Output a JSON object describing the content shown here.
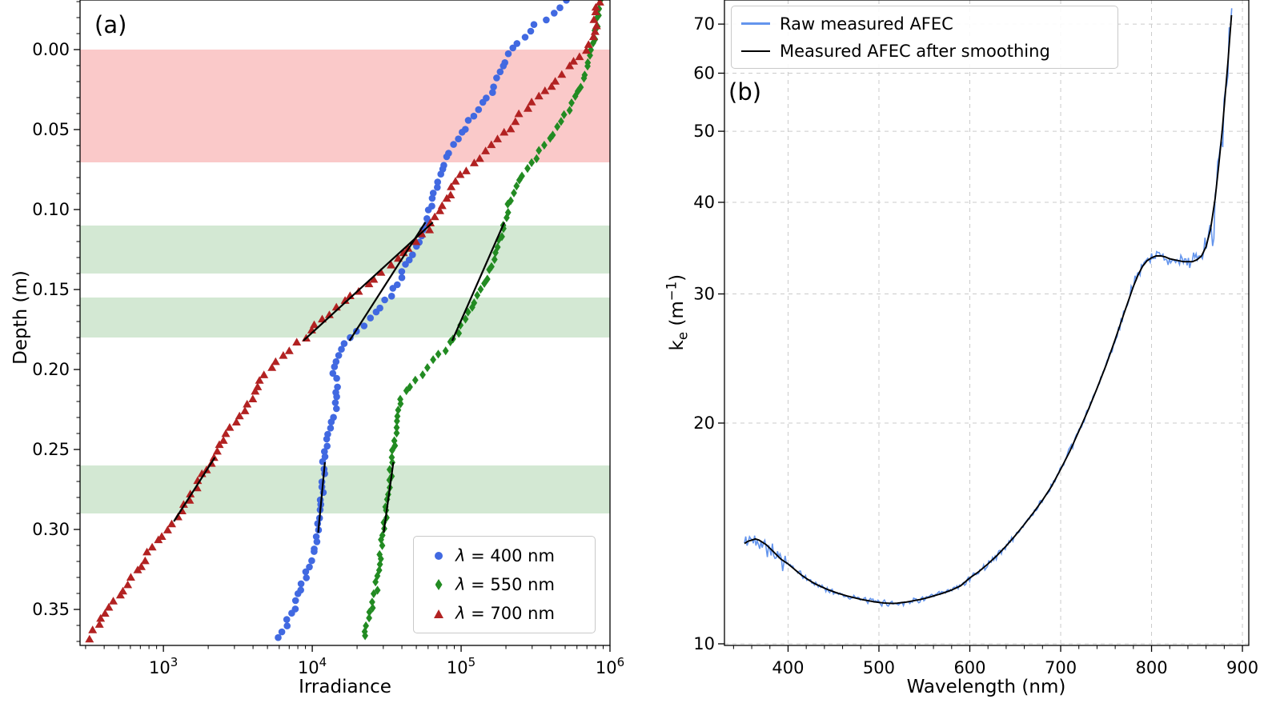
{
  "figure": {
    "background": "#ffffff",
    "panels": {
      "a": {
        "tag": "(a)",
        "xlabel": "Irradiance",
        "ylabel": "Depth (m)"
      },
      "b": {
        "tag": "(b)",
        "xlabel": "Wavelength (nm)",
        "ylabel_pre": "k",
        "ylabel_sub": "e",
        "ylabel_mid": " (m",
        "ylabel_sup": "−1",
        "ylabel_post": ")"
      }
    }
  },
  "chart_data": [
    {
      "id": "a",
      "type": "scatter",
      "xlabel": "Irradiance",
      "ylabel": "Depth (m)",
      "xscale": "log",
      "xlim_log": [
        2.44,
        6.0
      ],
      "ylim": [
        -0.031,
        0.3725
      ],
      "y_inverted": true,
      "grid": false,
      "legend_position": "lower right",
      "xticks_log": [
        3,
        4,
        5,
        6
      ],
      "xtick_labels": [
        {
          "base": "10",
          "exp": "3"
        },
        {
          "base": "10",
          "exp": "4"
        },
        {
          "base": "10",
          "exp": "5"
        },
        {
          "base": "10",
          "exp": "6"
        }
      ],
      "yticks": [
        0.0,
        0.05,
        0.1,
        0.15,
        0.2,
        0.25,
        0.3,
        0.35
      ],
      "ytick_labels": [
        "0.00",
        "0.05",
        "0.10",
        "0.15",
        "0.20",
        "0.25",
        "0.30",
        "0.35"
      ],
      "bands": [
        {
          "y1": 0.0,
          "y2": 0.0705,
          "color": "rgba(240,100,100,0.35)",
          "meaning": "surface-band"
        },
        {
          "y1": 0.11,
          "y2": 0.14,
          "color": "rgba(110,180,110,0.30)",
          "meaning": "fit-band"
        },
        {
          "y1": 0.155,
          "y2": 0.18,
          "color": "rgba(110,180,110,0.30)",
          "meaning": "fit-band"
        },
        {
          "y1": 0.26,
          "y2": 0.29,
          "color": "rgba(110,180,110,0.30)",
          "meaning": "fit-band"
        }
      ],
      "fit_color": "#000000",
      "fit_lines": [
        {
          "series": "700 nm",
          "d1": 0.108,
          "log1": 4.81,
          "d2": 0.182,
          "log2": 3.94
        },
        {
          "series": "400 nm",
          "d1": 0.108,
          "log1": 4.76,
          "d2": 0.182,
          "log2": 4.25
        },
        {
          "series": "550 nm",
          "d1": 0.108,
          "log1": 5.29,
          "d2": 0.182,
          "log2": 4.94
        },
        {
          "series": "700 nm",
          "d1": 0.255,
          "log1": 3.345,
          "d2": 0.295,
          "log2": 3.07
        },
        {
          "series": "400 nm",
          "d1": 0.258,
          "log1": 4.085,
          "d2": 0.302,
          "log2": 4.04
        },
        {
          "series": "550 nm",
          "d1": 0.258,
          "log1": 4.545,
          "d2": 0.302,
          "log2": 4.48
        }
      ],
      "series": [
        {
          "label": "λ = 400 nm",
          "label_lambda": "λ",
          "label_rest": " = 400 nm",
          "marker": "circle",
          "color": "#4169E1",
          "jitter_log": 0.013,
          "depth_start": -0.03,
          "depth_step": 0.0075,
          "log_irradiance": [
            5.7,
            5.62,
            5.5,
            5.42,
            5.35,
            5.3,
            5.26,
            5.22,
            5.18,
            5.13,
            5.06,
            5.0,
            4.95,
            4.9,
            4.87,
            4.84,
            4.82,
            4.8,
            4.78,
            4.75,
            4.71,
            4.67,
            4.63,
            4.59,
            4.55,
            4.49,
            4.42,
            4.34,
            4.26,
            4.19,
            4.16,
            4.15,
            4.16,
            4.17,
            4.15,
            4.12,
            4.1,
            4.09,
            4.08,
            4.08,
            4.07,
            4.07,
            4.06,
            4.05,
            4.04,
            4.02,
            4.0,
            3.98,
            3.95,
            3.92,
            3.89,
            3.86,
            3.82,
            3.78
          ]
        },
        {
          "label": "λ = 550 nm",
          "label_lambda": "λ",
          "label_rest": " = 550 nm",
          "marker": "diamond",
          "color": "#228B22",
          "jitter_log": 0.01,
          "depth_start": -0.03,
          "depth_step": 0.0075,
          "log_irradiance": [
            5.93,
            5.92,
            5.91,
            5.9,
            5.88,
            5.86,
            5.83,
            5.8,
            5.76,
            5.72,
            5.67,
            5.62,
            5.56,
            5.5,
            5.44,
            5.39,
            5.35,
            5.32,
            5.3,
            5.28,
            5.26,
            5.23,
            5.2,
            5.17,
            5.13,
            5.09,
            5.05,
            5.0,
            4.95,
            4.89,
            4.82,
            4.74,
            4.66,
            4.6,
            4.58,
            4.57,
            4.56,
            4.55,
            4.54,
            4.53,
            4.52,
            4.51,
            4.5,
            4.49,
            4.48,
            4.47,
            4.46,
            4.45,
            4.44,
            4.43,
            4.41,
            4.39,
            4.37,
            4.35
          ]
        },
        {
          "label": "λ = 700 nm",
          "label_lambda": "λ",
          "label_rest": " = 700 nm",
          "marker": "triangle",
          "color": "#B22222",
          "jitter_log": 0.013,
          "depth_start": -0.03,
          "depth_step": 0.0075,
          "log_irradiance": [
            5.92,
            5.91,
            5.9,
            5.88,
            5.84,
            5.76,
            5.68,
            5.6,
            5.52,
            5.44,
            5.36,
            5.28,
            5.2,
            5.12,
            5.04,
            4.97,
            4.92,
            4.87,
            4.83,
            4.78,
            4.7,
            4.61,
            4.52,
            4.42,
            4.32,
            4.21,
            4.11,
            4.02,
            3.95,
            3.85,
            3.76,
            3.68,
            3.63,
            3.6,
            3.55,
            3.48,
            3.42,
            3.38,
            3.34,
            3.29,
            3.24,
            3.19,
            3.14,
            3.09,
            3.03,
            2.96,
            2.9,
            2.84,
            2.79,
            2.73,
            2.67,
            2.61,
            2.56,
            2.51
          ]
        }
      ]
    },
    {
      "id": "b",
      "type": "line",
      "xlabel": "Wavelength (nm)",
      "ylabel": "ke (m-1)",
      "yscale": "log",
      "xlim": [
        330,
        907
      ],
      "ylim": [
        9.95,
        75.5
      ],
      "grid": true,
      "grid_color": "#cbcbcb",
      "legend_position": "upper left",
      "xticks": [
        400,
        500,
        600,
        700,
        800,
        900
      ],
      "xtick_labels": [
        "400",
        "500",
        "600",
        "700",
        "800",
        "900"
      ],
      "yticks": [
        10,
        20,
        30,
        40,
        50,
        60,
        70
      ],
      "ytick_labels": [
        "10",
        "20",
        "30",
        "40",
        "50",
        "60",
        "70"
      ],
      "series": [
        {
          "label": "Raw measured AFEC",
          "color": "#6495ED",
          "derived_from": "smoothed",
          "noise_seed": 42,
          "noise_step_nm": 1.4,
          "noise_segments": [
            {
              "from": 350,
              "to": 398,
              "amp": 0.02
            },
            {
              "from": 398,
              "to": 600,
              "amp": 0.006
            },
            {
              "from": 600,
              "to": 760,
              "amp": 0.007
            },
            {
              "from": 760,
              "to": 845,
              "amp": 0.013
            },
            {
              "from": 845,
              "to": 866,
              "amp": 0.025
            },
            {
              "from": 866,
              "to": 890,
              "amp": 0.06
            }
          ]
        },
        {
          "label": "Measured AFEC after smoothing",
          "color": "#000000",
          "points": [
            [
              352,
              13.7
            ],
            [
              356,
              13.8
            ],
            [
              360,
              13.85
            ],
            [
              364,
              13.9
            ],
            [
              368,
              13.85
            ],
            [
              372,
              13.75
            ],
            [
              376,
              13.65
            ],
            [
              380,
              13.5
            ],
            [
              384,
              13.35
            ],
            [
              388,
              13.2
            ],
            [
              392,
              13.05
            ],
            [
              396,
              12.95
            ],
            [
              400,
              12.85
            ],
            [
              405,
              12.7
            ],
            [
              410,
              12.55
            ],
            [
              415,
              12.4
            ],
            [
              420,
              12.28
            ],
            [
              425,
              12.17
            ],
            [
              430,
              12.07
            ],
            [
              435,
              11.99
            ],
            [
              440,
              11.91
            ],
            [
              445,
              11.84
            ],
            [
              450,
              11.78
            ],
            [
              455,
              11.72
            ],
            [
              460,
              11.67
            ],
            [
              465,
              11.62
            ],
            [
              470,
              11.58
            ],
            [
              475,
              11.54
            ],
            [
              480,
              11.5
            ],
            [
              485,
              11.47
            ],
            [
              490,
              11.44
            ],
            [
              495,
              11.41
            ],
            [
              500,
              11.39
            ],
            [
              505,
              11.37
            ],
            [
              510,
              11.36
            ],
            [
              515,
              11.35
            ],
            [
              520,
              11.36
            ],
            [
              525,
              11.38
            ],
            [
              530,
              11.4
            ],
            [
              535,
              11.43
            ],
            [
              540,
              11.46
            ],
            [
              545,
              11.49
            ],
            [
              550,
              11.53
            ],
            [
              555,
              11.57
            ],
            [
              560,
              11.62
            ],
            [
              565,
              11.67
            ],
            [
              570,
              11.72
            ],
            [
              575,
              11.78
            ],
            [
              580,
              11.84
            ],
            [
              585,
              11.92
            ],
            [
              590,
              12.0
            ],
            [
              595,
              12.15
            ],
            [
              600,
              12.3
            ],
            [
              610,
              12.55
            ],
            [
              620,
              12.85
            ],
            [
              630,
              13.2
            ],
            [
              640,
              13.6
            ],
            [
              650,
              14.05
            ],
            [
              660,
              14.55
            ],
            [
              670,
              15.1
            ],
            [
              680,
              15.7
            ],
            [
              690,
              16.4
            ],
            [
              700,
              17.3
            ],
            [
              710,
              18.3
            ],
            [
              720,
              19.5
            ],
            [
              730,
              20.8
            ],
            [
              740,
              22.3
            ],
            [
              750,
              24.0
            ],
            [
              760,
              26.0
            ],
            [
              770,
              28.3
            ],
            [
              780,
              30.7
            ],
            [
              785,
              31.8
            ],
            [
              790,
              32.7
            ],
            [
              795,
              33.3
            ],
            [
              800,
              33.6
            ],
            [
              805,
              33.8
            ],
            [
              810,
              33.8
            ],
            [
              815,
              33.7
            ],
            [
              820,
              33.5
            ],
            [
              825,
              33.4
            ],
            [
              830,
              33.3
            ],
            [
              835,
              33.2
            ],
            [
              840,
              33.2
            ],
            [
              845,
              33.2
            ],
            [
              850,
              33.4
            ],
            [
              855,
              33.8
            ],
            [
              860,
              34.8
            ],
            [
              865,
              36.8
            ],
            [
              870,
              40.5
            ],
            [
              874,
              45.0
            ],
            [
              878,
              50.5
            ],
            [
              881,
              56.0
            ],
            [
              884,
              62.0
            ],
            [
              886,
              67.0
            ],
            [
              888,
              72.0
            ]
          ]
        }
      ]
    }
  ]
}
